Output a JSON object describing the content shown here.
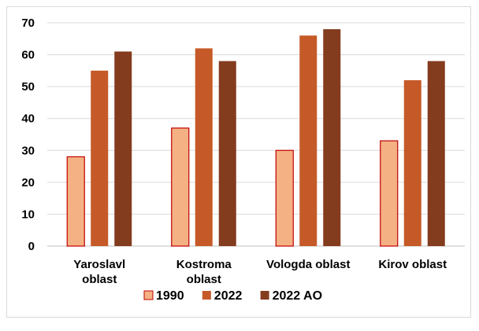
{
  "chart_data": {
    "type": "bar",
    "categories": [
      [
        "Yaroslavl",
        "oblast"
      ],
      [
        "Kostroma",
        "oblast"
      ],
      [
        "Vologda oblast"
      ],
      [
        "Kirov oblast"
      ]
    ],
    "series": [
      {
        "name": "1990",
        "values": [
          28,
          37,
          30,
          33
        ],
        "color": "#f4b183",
        "stroke": "#c00000"
      },
      {
        "name": "2022",
        "values": [
          55,
          62,
          66,
          52
        ],
        "color": "#c55a28"
      },
      {
        "name": "2022 AO",
        "values": [
          61,
          58,
          68,
          58
        ],
        "color": "#843c1e"
      }
    ],
    "ylim": [
      0,
      70
    ],
    "yticks": [
      0,
      10,
      20,
      30,
      40,
      50,
      60,
      70
    ],
    "grid": true,
    "legend_position": "bottom",
    "title": "",
    "xlabel": "",
    "ylabel": ""
  }
}
